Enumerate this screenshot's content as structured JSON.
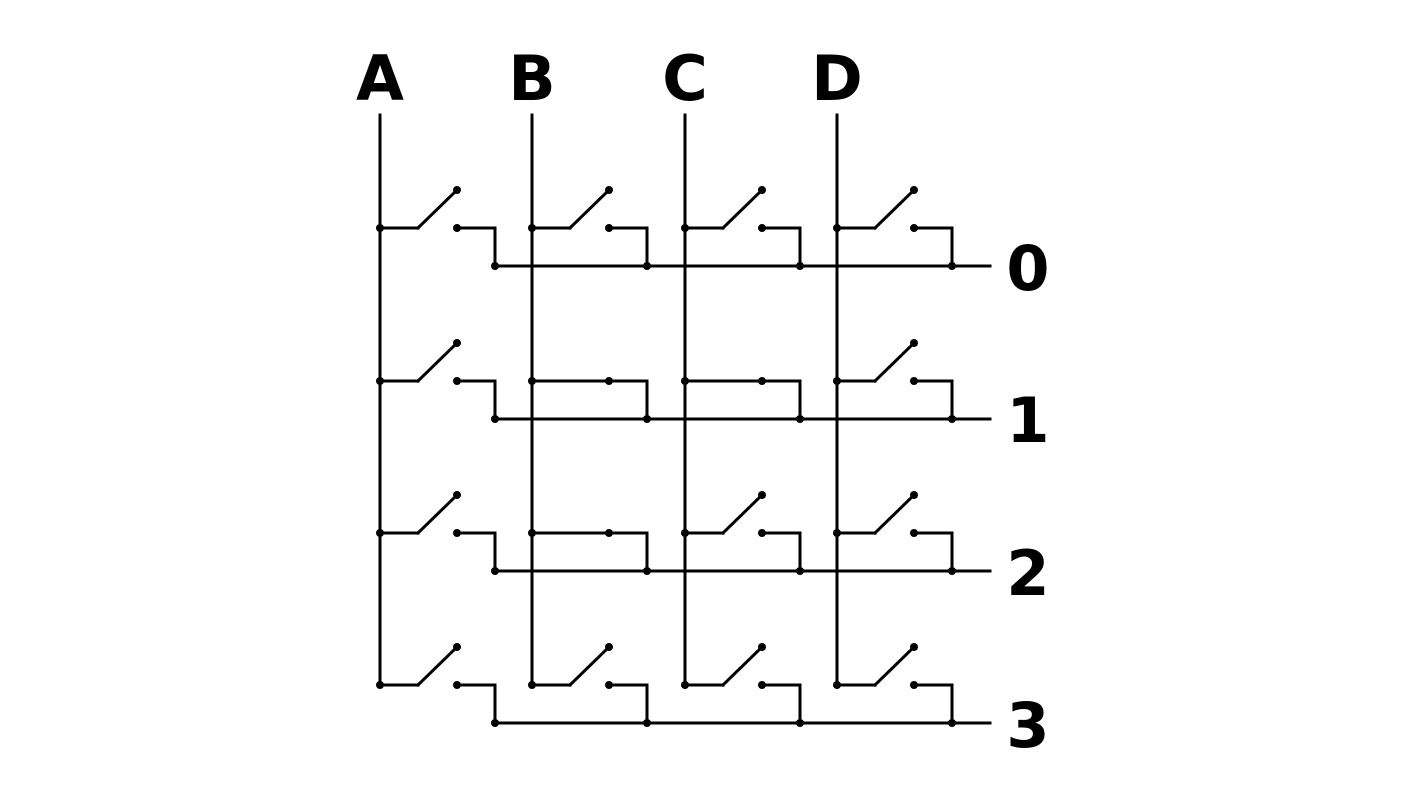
{
  "columns": [
    {
      "label": "A"
    },
    {
      "label": "B"
    },
    {
      "label": "C"
    },
    {
      "label": "D"
    }
  ],
  "rows": [
    {
      "label": "0"
    },
    {
      "label": "1"
    },
    {
      "label": "2"
    },
    {
      "label": "3"
    }
  ],
  "switch_states": [
    [
      "open",
      "open",
      "open",
      "open"
    ],
    [
      "open",
      "closed",
      "closed",
      "open"
    ],
    [
      "open",
      "closed",
      "open",
      "open"
    ],
    [
      "open",
      "open",
      "open",
      "open"
    ]
  ],
  "colors": {
    "line": "#000000",
    "background": "#ffffff"
  }
}
